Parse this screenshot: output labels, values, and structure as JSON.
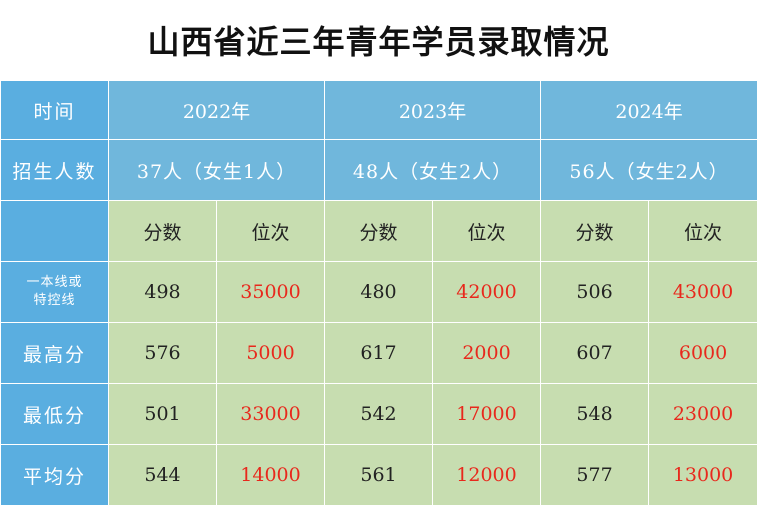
{
  "title": "山西省近三年青年学员录取情况",
  "header": {
    "row_label": "时间",
    "years": [
      "2022年",
      "2023年",
      "2024年"
    ]
  },
  "count": {
    "row_label": "招生人数",
    "values": [
      "37人（女生1人）",
      "48人（女生2人）",
      "56人（女生2人）"
    ]
  },
  "subheader": {
    "score": "分数",
    "rank": "位次"
  },
  "rows": [
    {
      "label": "一本线或特控线",
      "label_line1": "一本线或",
      "label_line2": "特控线",
      "cells": [
        "498",
        "35000",
        "480",
        "42000",
        "506",
        "43000"
      ]
    },
    {
      "label": "最高分",
      "cells": [
        "576",
        "5000",
        "617",
        "2000",
        "607",
        "6000"
      ]
    },
    {
      "label": "最低分",
      "cells": [
        "501",
        "33000",
        "542",
        "17000",
        "548",
        "23000"
      ]
    },
    {
      "label": "平均分",
      "cells": [
        "544",
        "14000",
        "561",
        "12000",
        "577",
        "13000"
      ]
    }
  ],
  "colors": {
    "label_blue": "#5aaee0",
    "header_blue": "#70b7dc",
    "data_green": "#c7ddb0",
    "rank_red": "#e8281c"
  }
}
